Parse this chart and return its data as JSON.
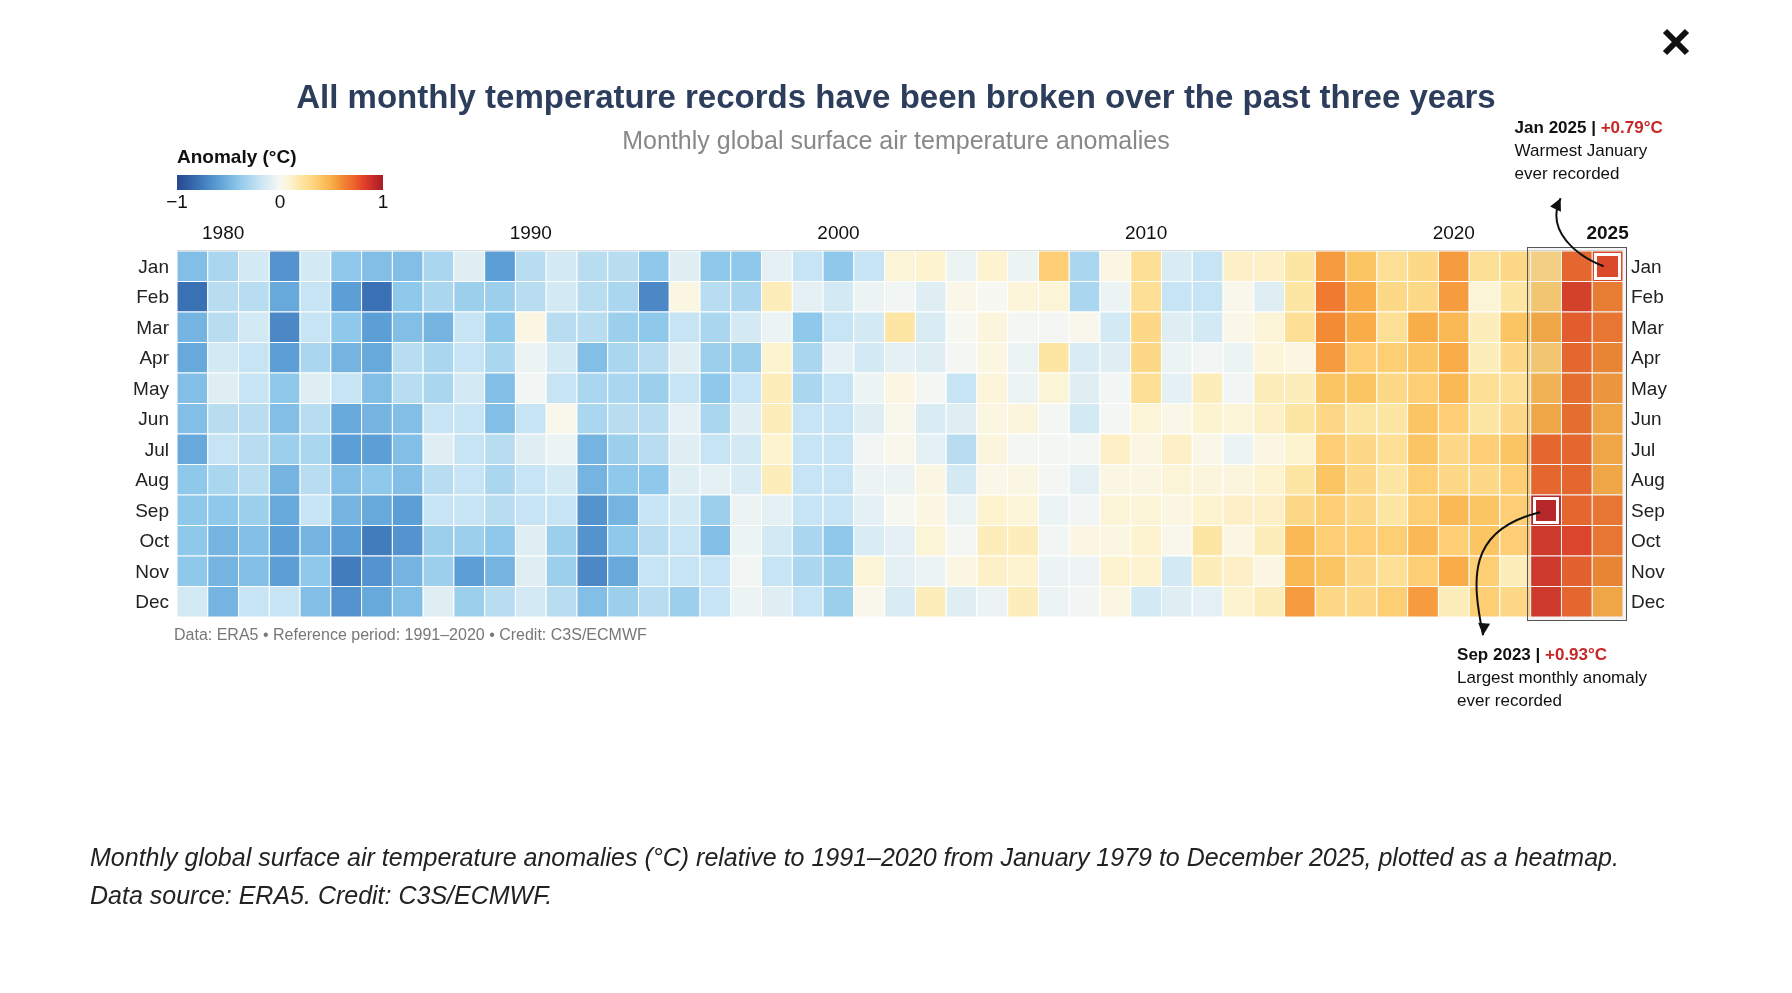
{
  "chart_data": {
    "type": "heatmap",
    "title": "All monthly temperature records have been broken over the past three years",
    "subtitle": "Monthly global surface air temperature anomalies",
    "clabel": "Anomaly (°C)",
    "clim": [
      -1,
      1
    ],
    "cticks": [
      {
        "value": -1,
        "label": "−1"
      },
      0,
      1
    ],
    "x": [
      1979,
      1980,
      1981,
      1982,
      1983,
      1984,
      1985,
      1986,
      1987,
      1988,
      1989,
      1990,
      1991,
      1992,
      1993,
      1994,
      1995,
      1996,
      1997,
      1998,
      1999,
      2000,
      2001,
      2002,
      2003,
      2004,
      2005,
      2006,
      2007,
      2008,
      2009,
      2010,
      2011,
      2012,
      2013,
      2014,
      2015,
      2016,
      2017,
      2018,
      2019,
      2020,
      2021,
      2022,
      2023,
      2024,
      2025
    ],
    "xlim": [
      1978.5,
      2025.5
    ],
    "xticks": [
      1980,
      1990,
      2000,
      2010,
      2020,
      2025
    ],
    "y_categories": [
      "Jan",
      "Feb",
      "Mar",
      "Apr",
      "May",
      "Jun",
      "Jul",
      "Aug",
      "Sep",
      "Oct",
      "Nov",
      "Dec"
    ],
    "y2_categories": [
      "Jan",
      "Feb",
      "Mar",
      "Apr",
      "May",
      "Jun",
      "Jul",
      "Aug",
      "Sep",
      "Oct",
      "Nov",
      "Dec"
    ],
    "cells": [
      [
        -0.45,
        -0.3,
        -0.15,
        -0.65,
        -0.15,
        -0.4,
        -0.45,
        -0.45,
        -0.3,
        -0.1,
        -0.6,
        -0.25,
        -0.15,
        -0.25,
        -0.25,
        -0.4,
        -0.1,
        -0.4,
        -0.4,
        -0.08,
        -0.2,
        -0.4,
        -0.2,
        0.08,
        0.1,
        -0.05,
        0.1,
        -0.05,
        0.35,
        -0.3,
        0.05,
        0.25,
        -0.12,
        -0.2,
        0.12,
        0.12,
        0.2,
        0.55,
        0.4,
        0.25,
        0.3,
        0.55,
        0.25,
        0.3,
        0.3,
        0.7,
        0.79
      ],
      [
        -0.8,
        -0.25,
        -0.25,
        -0.55,
        -0.2,
        -0.6,
        -0.8,
        -0.4,
        -0.3,
        -0.35,
        -0.35,
        -0.25,
        -0.15,
        -0.25,
        -0.3,
        -0.7,
        0.05,
        -0.25,
        -0.3,
        0.15,
        -0.08,
        -0.15,
        -0.05,
        -0.03,
        -0.1,
        0.03,
        0,
        0.07,
        0.08,
        -0.3,
        -0.05,
        0.25,
        -0.2,
        -0.2,
        0.02,
        -0.1,
        0.2,
        0.65,
        0.5,
        0.3,
        0.3,
        0.55,
        0.08,
        0.2,
        0.35,
        0.82,
        0.63
      ],
      [
        -0.5,
        -0.25,
        -0.15,
        -0.7,
        -0.2,
        -0.4,
        -0.6,
        -0.45,
        -0.5,
        -0.2,
        -0.4,
        0.05,
        -0.25,
        -0.25,
        -0.35,
        -0.4,
        -0.2,
        -0.3,
        -0.15,
        -0.05,
        -0.4,
        -0.2,
        -0.15,
        0.2,
        -0.12,
        0,
        0.06,
        -0.02,
        -0.02,
        0.02,
        -0.15,
        0.3,
        -0.1,
        -0.15,
        0.03,
        0.08,
        0.25,
        0.6,
        0.5,
        0.25,
        0.5,
        0.45,
        0.15,
        0.4,
        0.5,
        0.73,
        0.65
      ],
      [
        -0.55,
        -0.15,
        -0.2,
        -0.6,
        -0.3,
        -0.5,
        -0.55,
        -0.25,
        -0.3,
        -0.2,
        -0.3,
        -0.05,
        -0.15,
        -0.45,
        -0.3,
        -0.25,
        -0.1,
        -0.35,
        -0.35,
        0.1,
        -0.3,
        -0.08,
        -0.15,
        -0.08,
        -0.1,
        -0.02,
        0.05,
        -0.05,
        0.2,
        -0.12,
        -0.1,
        0.3,
        -0.05,
        -0.03,
        -0.05,
        0.07,
        0.05,
        0.55,
        0.35,
        0.35,
        0.4,
        0.5,
        0.15,
        0.3,
        0.35,
        0.7,
        0.6
      ],
      [
        -0.45,
        -0.1,
        -0.2,
        -0.4,
        -0.1,
        -0.2,
        -0.45,
        -0.25,
        -0.3,
        -0.15,
        -0.45,
        -0.03,
        -0.2,
        -0.3,
        -0.3,
        -0.35,
        -0.2,
        -0.4,
        -0.2,
        0.15,
        -0.3,
        -0.2,
        -0.05,
        0.05,
        -0.02,
        -0.2,
        0.07,
        -0.05,
        0.08,
        -0.1,
        -0.03,
        0.25,
        -0.08,
        0.15,
        -0.03,
        0.15,
        0.15,
        0.4,
        0.4,
        0.3,
        0.35,
        0.45,
        0.25,
        0.25,
        0.45,
        0.68,
        0.55
      ],
      [
        -0.45,
        -0.25,
        -0.25,
        -0.45,
        -0.25,
        -0.55,
        -0.5,
        -0.45,
        -0.2,
        -0.2,
        -0.45,
        -0.2,
        0.02,
        -0.3,
        -0.25,
        -0.25,
        -0.08,
        -0.3,
        -0.1,
        0.15,
        -0.2,
        -0.2,
        -0.1,
        0.02,
        -0.12,
        -0.1,
        0.05,
        0.06,
        -0.02,
        -0.15,
        -0.02,
        0.08,
        0.03,
        0.1,
        0.08,
        0.12,
        0.2,
        0.3,
        0.2,
        0.2,
        0.4,
        0.35,
        0.2,
        0.3,
        0.5,
        0.68,
        0.5
      ],
      [
        -0.55,
        -0.2,
        -0.25,
        -0.35,
        -0.3,
        -0.6,
        -0.6,
        -0.45,
        -0.1,
        -0.2,
        -0.25,
        -0.1,
        -0.05,
        -0.5,
        -0.35,
        -0.25,
        -0.1,
        -0.2,
        -0.15,
        0.1,
        -0.2,
        -0.2,
        -0.03,
        0.02,
        -0.08,
        -0.25,
        0.06,
        -0.02,
        -0.02,
        -0.02,
        0.12,
        0.05,
        0.12,
        0.03,
        -0.05,
        0.05,
        0.1,
        0.35,
        0.3,
        0.25,
        0.4,
        0.3,
        0.35,
        0.4,
        0.7,
        0.7,
        0.5
      ],
      [
        -0.4,
        -0.3,
        -0.25,
        -0.5,
        -0.25,
        -0.45,
        -0.4,
        -0.45,
        -0.25,
        -0.2,
        -0.3,
        -0.2,
        -0.15,
        -0.5,
        -0.4,
        -0.4,
        -0.1,
        -0.08,
        -0.12,
        0.15,
        -0.2,
        -0.2,
        -0.05,
        -0.05,
        0.05,
        -0.15,
        0.03,
        0.05,
        -0.02,
        -0.08,
        0.05,
        0.05,
        0.08,
        0.06,
        0.06,
        0.1,
        0.2,
        0.4,
        0.3,
        0.2,
        0.35,
        0.3,
        0.3,
        0.35,
        0.7,
        0.7,
        0.5
      ],
      [
        -0.4,
        -0.4,
        -0.35,
        -0.55,
        -0.2,
        -0.5,
        -0.55,
        -0.6,
        -0.2,
        -0.2,
        -0.25,
        -0.2,
        -0.2,
        -0.65,
        -0.5,
        -0.2,
        -0.15,
        -0.35,
        -0.05,
        -0.08,
        -0.2,
        -0.2,
        -0.08,
        0,
        0.05,
        -0.05,
        0.1,
        0.07,
        -0.05,
        -0.03,
        0.08,
        0.08,
        0.05,
        0.1,
        0.12,
        0.12,
        0.3,
        0.35,
        0.3,
        0.2,
        0.35,
        0.45,
        0.4,
        0.35,
        0.93,
        0.7,
        0.65
      ],
      [
        -0.4,
        -0.5,
        -0.45,
        -0.6,
        -0.5,
        -0.6,
        -0.75,
        -0.65,
        -0.35,
        -0.35,
        -0.4,
        -0.1,
        -0.35,
        -0.65,
        -0.4,
        -0.25,
        -0.2,
        -0.45,
        -0.05,
        -0.15,
        -0.3,
        -0.4,
        -0.12,
        -0.08,
        0.08,
        -0.02,
        0.15,
        0.15,
        -0.03,
        0.05,
        0.05,
        0.1,
        0.02,
        0.2,
        0.05,
        0.15,
        0.45,
        0.35,
        0.35,
        0.35,
        0.45,
        0.35,
        0.4,
        0.35,
        0.85,
        0.8,
        0.65
      ],
      [
        -0.4,
        -0.5,
        -0.45,
        -0.6,
        -0.4,
        -0.75,
        -0.65,
        -0.5,
        -0.35,
        -0.6,
        -0.5,
        -0.1,
        -0.35,
        -0.7,
        -0.55,
        -0.2,
        -0.2,
        -0.2,
        -0.03,
        -0.2,
        -0.3,
        -0.35,
        0.08,
        -0.08,
        -0.05,
        0.05,
        0.12,
        0.1,
        -0.05,
        -0.04,
        0.1,
        0.1,
        -0.15,
        0.15,
        0.12,
        0.05,
        0.45,
        0.4,
        0.3,
        0.25,
        0.35,
        0.5,
        0.35,
        0.15,
        0.85,
        0.72,
        0.6
      ],
      [
        -0.15,
        -0.5,
        -0.2,
        -0.2,
        -0.45,
        -0.65,
        -0.55,
        -0.45,
        -0.1,
        -0.35,
        -0.25,
        -0.15,
        -0.25,
        -0.45,
        -0.35,
        -0.25,
        -0.35,
        -0.2,
        -0.05,
        -0.1,
        -0.2,
        -0.35,
        0.02,
        -0.12,
        0.15,
        -0.1,
        -0.05,
        0.15,
        -0.05,
        -0.03,
        0.05,
        -0.15,
        -0.1,
        -0.08,
        0.1,
        0.15,
        0.55,
        0.3,
        0.3,
        0.35,
        0.55,
        0.15,
        0.35,
        0.3,
        0.85,
        0.7,
        0.5
      ]
    ],
    "bands": [
      {
        "axis": "x",
        "from": 2022.5,
        "to": 2025.5
      }
    ],
    "annotations": [
      {
        "text": "Jan 2025 | +0.79°C\nWarmest January ever recorded",
        "x": 2025,
        "y": "Jan"
      },
      {
        "text": "Sep 2023 | +0.93°C\nLargest monthly anomaly ever recorded",
        "x": 2023,
        "y": "Sep"
      },
      "Data: ERA5 • Reference period: 1991–2020 • Credit: C3S/ECMWF",
      "Monthly global surface air temperature anomalies (°C) relative to 1991–2020 from January 1979 to December 2025, plotted as a heatmap. Data source: ERA5. Credit: C3S/ECMWF."
    ]
  }
}
